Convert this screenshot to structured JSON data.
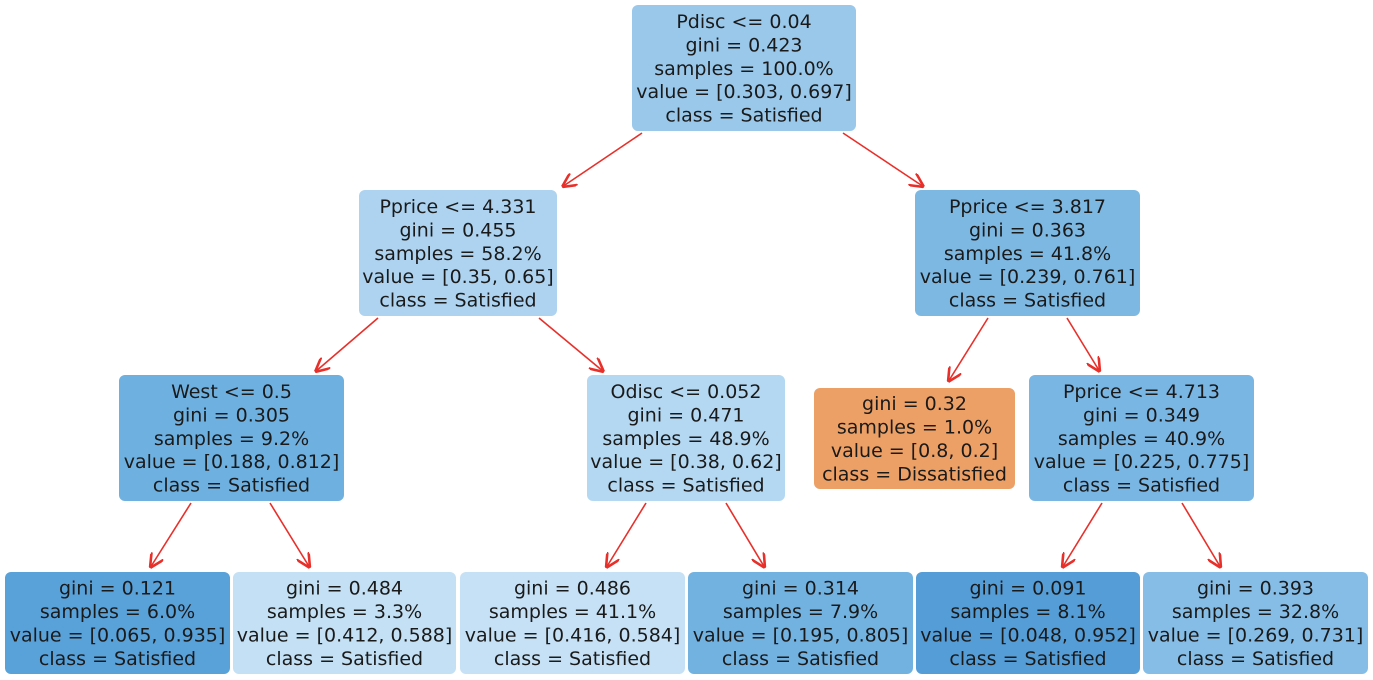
{
  "tree": {
    "nodes": [
      {
        "id": "n0",
        "lines": [
          "Pdisc <= 0.04",
          "gini = 0.423",
          "samples = 100.0%",
          "value = [0.303, 0.697]",
          "class = Satisfied"
        ],
        "fill": "#99c8ea"
      },
      {
        "id": "n1",
        "lines": [
          "Pprice <= 4.331",
          "gini = 0.455",
          "samples = 58.2%",
          "value = [0.35, 0.65]",
          "class = Satisfied"
        ],
        "fill": "#add3f0"
      },
      {
        "id": "n2",
        "lines": [
          "Pprice <= 3.817",
          "gini = 0.363",
          "samples = 41.8%",
          "value = [0.239, 0.761]",
          "class = Satisfied"
        ],
        "fill": "#7db8e3"
      },
      {
        "id": "n3",
        "lines": [
          "West <= 0.5",
          "gini = 0.305",
          "samples = 9.2%",
          "value = [0.188, 0.812]",
          "class = Satisfied"
        ],
        "fill": "#6eb0e0"
      },
      {
        "id": "n4",
        "lines": [
          "Odisc <= 0.052",
          "gini = 0.471",
          "samples = 48.9%",
          "value = [0.38, 0.62]",
          "class = Satisfied"
        ],
        "fill": "#b4d8f2"
      },
      {
        "id": "n5",
        "lines": [
          "gini = 0.32",
          "samples = 1.0%",
          "value = [0.8, 0.2]",
          "class = Dissatisfied"
        ],
        "fill": "#eda065"
      },
      {
        "id": "n6",
        "lines": [
          "Pprice <= 4.713",
          "gini = 0.349",
          "samples = 40.9%",
          "value = [0.225, 0.775]",
          "class = Satisfied"
        ],
        "fill": "#7ab6e3"
      },
      {
        "id": "n7",
        "lines": [
          "gini = 0.121",
          "samples = 6.0%",
          "value = [0.065, 0.935]",
          "class = Satisfied"
        ],
        "fill": "#59a1d9"
      },
      {
        "id": "n8",
        "lines": [
          "gini = 0.484",
          "samples = 3.3%",
          "value = [0.412, 0.588]",
          "class = Satisfied"
        ],
        "fill": "#c4e0f4"
      },
      {
        "id": "n9",
        "lines": [
          "gini = 0.486",
          "samples = 41.1%",
          "value = [0.416, 0.584]",
          "class = Satisfied"
        ],
        "fill": "#c6e1f5"
      },
      {
        "id": "n10",
        "lines": [
          "gini = 0.314",
          "samples = 7.9%",
          "value = [0.195, 0.805]",
          "class = Satisfied"
        ],
        "fill": "#72b2e1"
      },
      {
        "id": "n11",
        "lines": [
          "gini = 0.091",
          "samples = 8.1%",
          "value = [0.048, 0.952]",
          "class = Satisfied"
        ],
        "fill": "#559dd6"
      },
      {
        "id": "n12",
        "lines": [
          "gini = 0.393",
          "samples = 32.8%",
          "value = [0.269, 0.731]",
          "class = Satisfied"
        ],
        "fill": "#86bde6"
      }
    ],
    "edges": [
      {
        "from": "n0",
        "to": "n1"
      },
      {
        "from": "n0",
        "to": "n2"
      },
      {
        "from": "n1",
        "to": "n3"
      },
      {
        "from": "n1",
        "to": "n4"
      },
      {
        "from": "n2",
        "to": "n5"
      },
      {
        "from": "n2",
        "to": "n6"
      },
      {
        "from": "n3",
        "to": "n7"
      },
      {
        "from": "n3",
        "to": "n8"
      },
      {
        "from": "n4",
        "to": "n9"
      },
      {
        "from": "n4",
        "to": "n10"
      },
      {
        "from": "n6",
        "to": "n11"
      },
      {
        "from": "n6",
        "to": "n12"
      }
    ],
    "edge_color": "#e8302a"
  }
}
